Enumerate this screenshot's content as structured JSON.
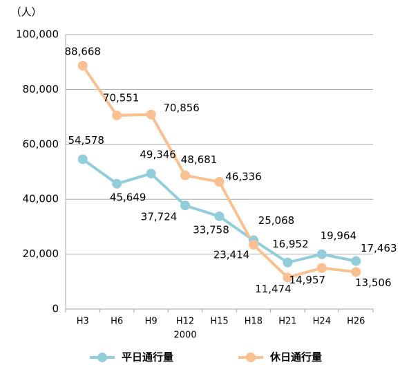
{
  "chart_data": {
    "type": "line",
    "y_axis_label": "（人）",
    "categories": [
      "H3",
      "H6",
      "H9",
      "H12",
      "H15",
      "H18",
      "H21",
      "H24",
      "H26"
    ],
    "annotations": [
      {
        "category": 3,
        "text": "2000"
      }
    ],
    "series": [
      {
        "name": "平日通行量",
        "color": "#92cddc",
        "values": [
          54578,
          45649,
          49346,
          37724,
          33758,
          25068,
          16952,
          19964,
          17463
        ],
        "value_labels": [
          "54,578",
          "45,649",
          "49,346",
          "37,724",
          "33,758",
          "25,068",
          "16,952",
          "19,964",
          "17,463"
        ]
      },
      {
        "name": "休日通行量",
        "color": "#fac090",
        "values": [
          88668,
          70551,
          70856,
          48681,
          46336,
          23414,
          11474,
          14957,
          13506
        ],
        "value_labels": [
          "88,668",
          "70,551",
          "70,856",
          "48,681",
          "46,336",
          "23,414",
          "11,474",
          "14,957",
          "13,506"
        ]
      }
    ],
    "ylim": [
      0,
      100000
    ],
    "yticks": [
      0,
      {
        "value": 20000,
        "label": "20,000"
      },
      {
        "value": 40000,
        "label": "40,000"
      },
      {
        "value": 60000,
        "label": "60,000"
      },
      {
        "value": 80000,
        "label": "80,000"
      },
      {
        "value": 100000,
        "label": "100,000"
      }
    ],
    "grid": true,
    "legend": "bottom"
  }
}
